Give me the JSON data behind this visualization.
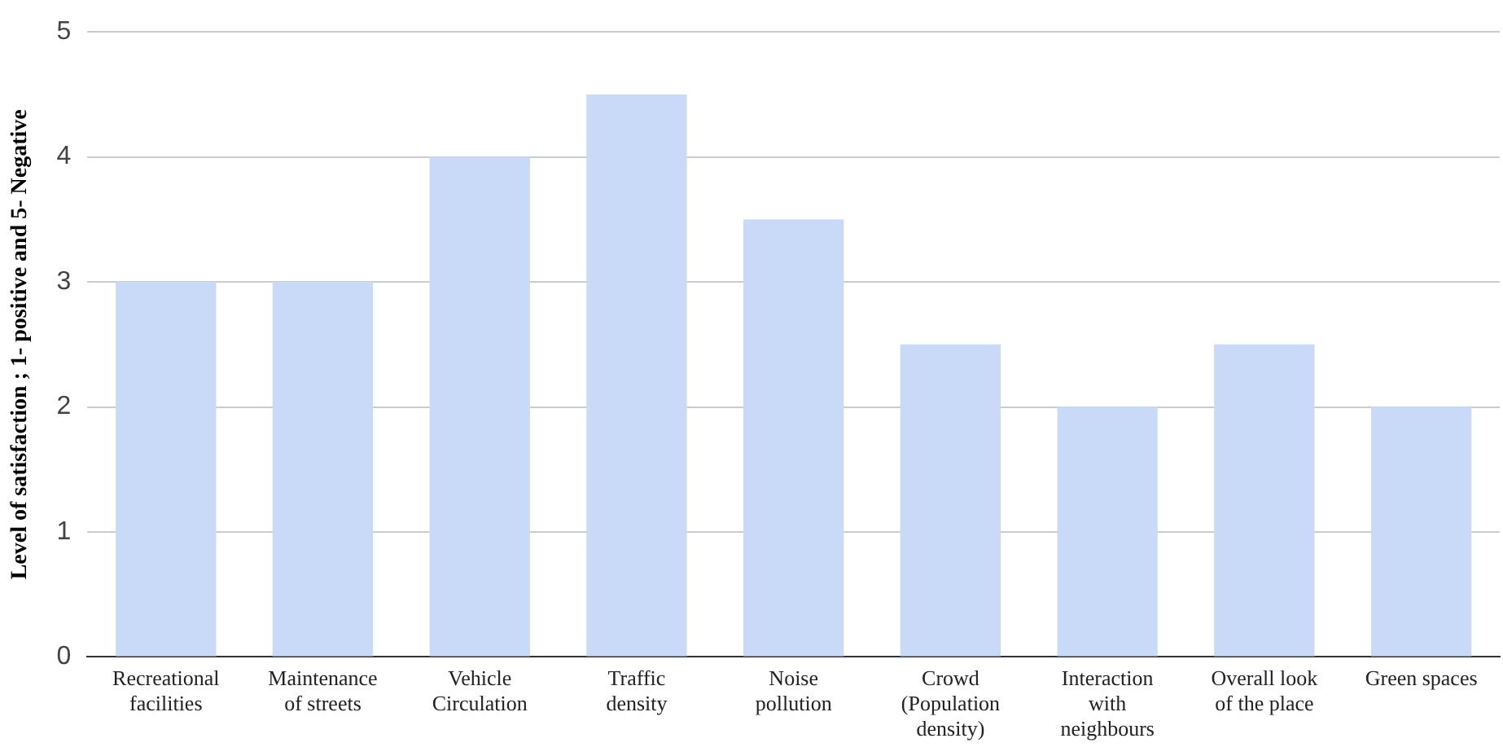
{
  "chart_data": {
    "type": "bar",
    "ylabel": "Level of satisfaction ; 1- positive and 5- Negative",
    "categories": [
      "Recreational facilities",
      "Maintenance of streets",
      "Vehicle Circulation",
      "Traffic density",
      "Noise pollution",
      "Crowd (Population density)",
      "Interaction with neighbours",
      "Overall look of the place",
      "Green spaces"
    ],
    "values": [
      3,
      3,
      4,
      4.5,
      3.5,
      2.5,
      2,
      2.5,
      2
    ],
    "color": "#c9daf8",
    "ylim": [
      0,
      5
    ],
    "yticks": [
      0,
      1,
      2,
      3,
      4,
      5
    ],
    "grid": "y",
    "legend": false
  }
}
